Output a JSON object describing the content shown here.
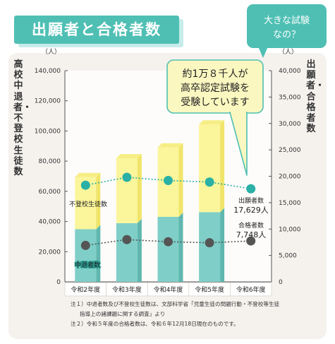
{
  "title": "出願者と合格者数",
  "question_bubble": {
    "line1": "大きな試験",
    "line2": "なの？"
  },
  "callout": {
    "line1": "約1万８千人が",
    "line2": "高卒認定試験を",
    "line3": "受験しています"
  },
  "left_axis_title": "高校中退者・不登校生徒数",
  "right_axis_title": "出願者・合格者数",
  "notes": [
    "注１）中退者数及び不登校生徒数は、文部科学省「児童生徒の問題行動・不登校等生徒",
    "指導上の諸課題に関する調査」より",
    "注２）令和５年度の合格者数は、令和６年12月18日現在のものです。"
  ],
  "colors": {
    "dropout_bar": "#7fcfc8",
    "nonattendance_bar": "#fbf59b",
    "applicants_line": "#2ab0a5",
    "passers_line": "#555555",
    "accent": "#4fbfb4"
  },
  "chart_data": {
    "type": "bar",
    "categories": [
      "令和2年度",
      "令和3年度",
      "令和4年度",
      "令和5年度",
      "令和6年度"
    ],
    "left_axis": {
      "unit": "（人）",
      "ylim": [
        0,
        140000
      ],
      "ticks": [
        0,
        20000,
        40000,
        60000,
        80000,
        100000,
        120000,
        140000
      ],
      "tick_labels": [
        "0",
        "20,000",
        "40,000",
        "60,000",
        "80,000",
        "100,000",
        "120,000",
        "140,000"
      ]
    },
    "right_axis": {
      "unit": "（人）",
      "ylim": [
        0,
        40000
      ],
      "ticks": [
        0,
        5000,
        10000,
        15000,
        20000,
        25000,
        30000,
        35000,
        40000
      ],
      "tick_labels": [
        "0",
        "5,000",
        "10,000",
        "15,000",
        "20,000",
        "25,000",
        "30,000",
        "35,000",
        "40,000"
      ]
    },
    "series": [
      {
        "name": "中退者数",
        "type": "stacked-bar",
        "axis": "left",
        "values": [
          34900,
          38900,
          43100,
          46200,
          null
        ]
      },
      {
        "name": "不登校生徒数",
        "type": "stacked-bar",
        "axis": "left",
        "values": [
          34500,
          43000,
          46000,
          58100,
          null
        ]
      },
      {
        "name": "出願者数",
        "type": "line",
        "axis": "right",
        "values": [
          18300,
          19800,
          19200,
          18900,
          17629
        ]
      },
      {
        "name": "合格者数",
        "type": "line",
        "axis": "right",
        "values": [
          6900,
          8000,
          7600,
          7400,
          7748
        ]
      }
    ],
    "labels": {
      "nonattendance": "不登校生徒数",
      "dropout": "中退者数",
      "applicants_name": "出願者数",
      "applicants_value": "17,629人",
      "passers_name": "合格者数",
      "passers_value": "7,748人"
    }
  }
}
